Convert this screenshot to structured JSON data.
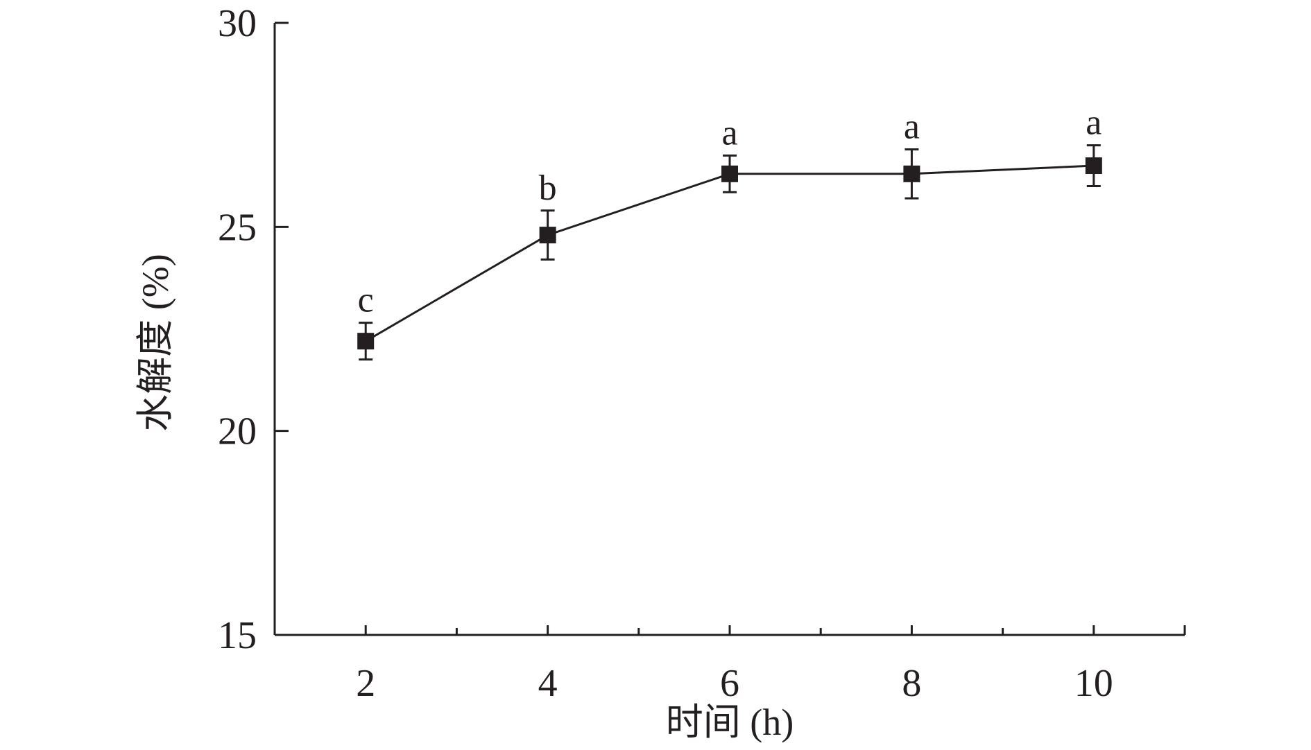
{
  "chart_data": {
    "type": "line",
    "xlabel": "时间 (h)",
    "ylabel": "水解度 (%)",
    "xlim": [
      1,
      11
    ],
    "ylim": [
      15,
      30
    ],
    "x_ticks_major": [
      2,
      4,
      6,
      8,
      10
    ],
    "x_ticks_minor": [
      3,
      5,
      7,
      9
    ],
    "x_tick_labels": [
      "2",
      "4",
      "6",
      "8",
      "10"
    ],
    "y_ticks": [
      15,
      20,
      25,
      30
    ],
    "y_tick_labels": [
      "15",
      "20",
      "25",
      "30"
    ],
    "grid": false,
    "series": [
      {
        "x": [
          2,
          4,
          6,
          8,
          10
        ],
        "y": [
          22.2,
          24.8,
          26.3,
          26.3,
          26.5
        ],
        "error": [
          0.45,
          0.6,
          0.45,
          0.6,
          0.5
        ],
        "labels": [
          "c",
          "b",
          "a",
          "a",
          "a"
        ],
        "color": "#231f20",
        "marker": "square"
      }
    ]
  }
}
